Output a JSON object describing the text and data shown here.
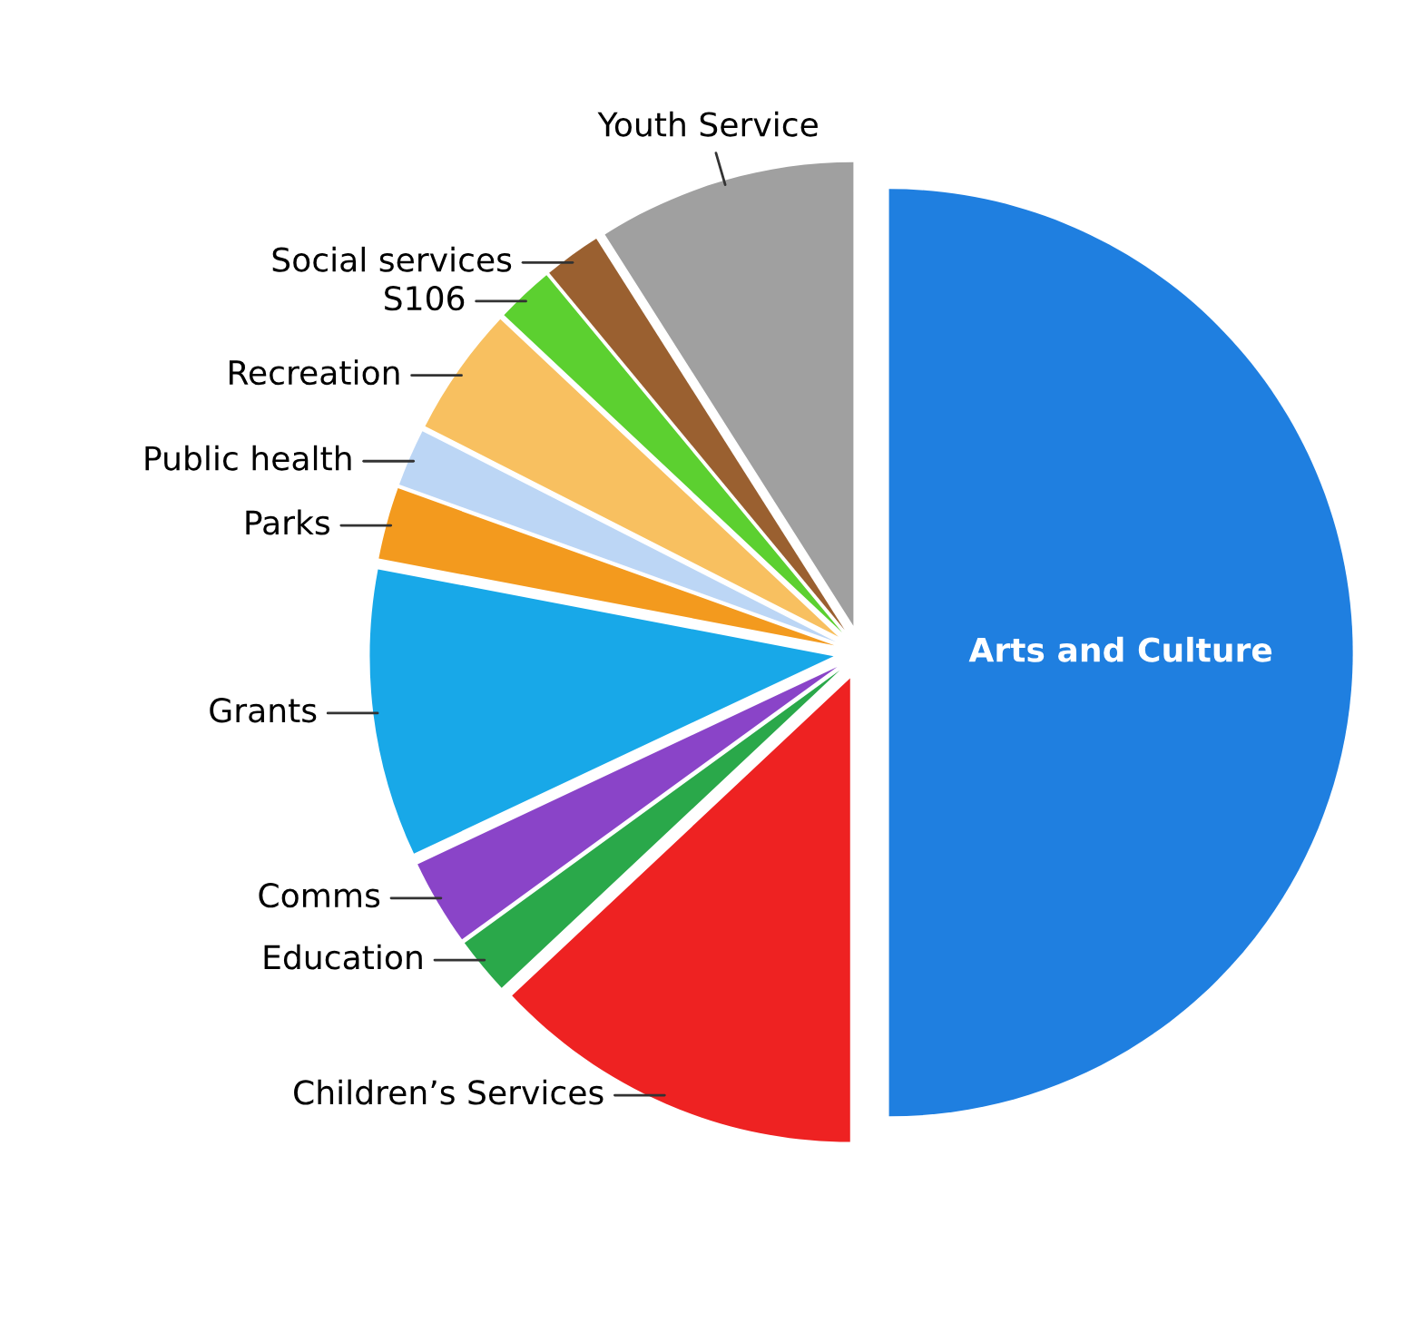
{
  "chart_data": {
    "type": "pie",
    "categories": [
      "Arts and Culture",
      "Children’s Services",
      "Education",
      "Comms",
      "Grants",
      "Parks",
      "Public health",
      "Recreation",
      "S106",
      "Social services",
      "Youth Service"
    ],
    "values": [
      50,
      13,
      2,
      3,
      10,
      2.5,
      2,
      4.5,
      2,
      2,
      9
    ],
    "colors": [
      "#1f7fe0",
      "#ee2222",
      "#2aa84a",
      "#8a44c8",
      "#18a8e8",
      "#f39a1e",
      "#bcd6f5",
      "#f8c060",
      "#5cd030",
      "#9a6030",
      "#a0a0a0"
    ],
    "legend": false
  }
}
